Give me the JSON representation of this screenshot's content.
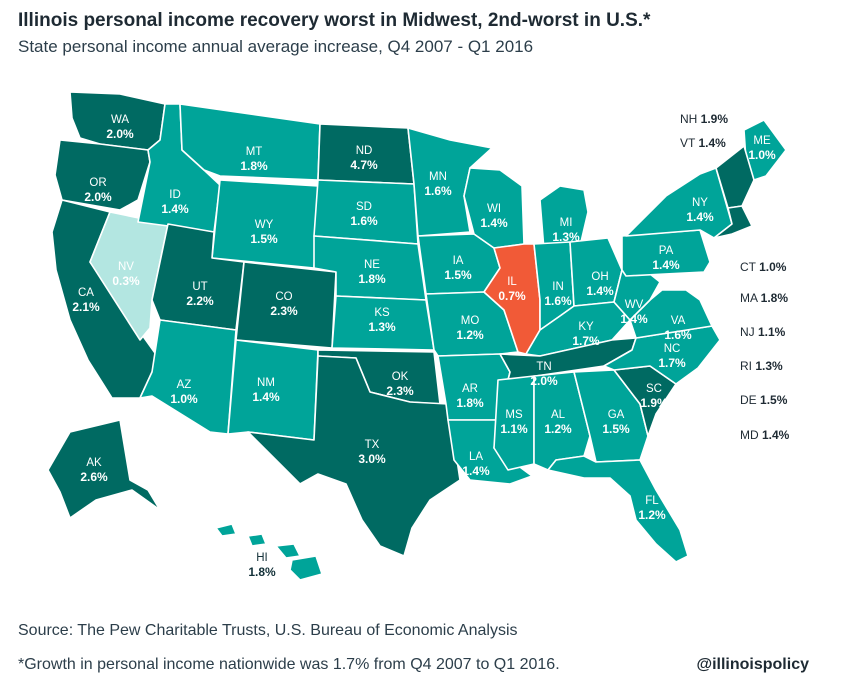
{
  "title": "Illinois personal income recovery worst in Midwest, 2nd-worst in U.S.*",
  "subtitle": "State personal income annual average increase, Q4 2007 - Q1 2016",
  "source": "Source: The Pew Charitable Trusts, U.S. Bureau of Economic Analysis",
  "footnote": "*Growth in personal income nationwide was 1.7% from Q4 2007 to Q1 2016.",
  "handle": "@illinoispolicy",
  "colors": {
    "low": "#b3e6e1",
    "mid": "#00a499",
    "high": "#006a62",
    "illinois": "#f15a37",
    "border": "#ffffff"
  },
  "states": [
    {
      "id": "WA",
      "label": "WA",
      "value": "2.0%"
    },
    {
      "id": "OR",
      "label": "OR",
      "value": "2.0%"
    },
    {
      "id": "CA",
      "label": "CA",
      "value": "2.1%"
    },
    {
      "id": "NV",
      "label": "NV",
      "value": "0.3%"
    },
    {
      "id": "ID",
      "label": "ID",
      "value": "1.4%"
    },
    {
      "id": "MT",
      "label": "MT",
      "value": "1.8%"
    },
    {
      "id": "WY",
      "label": "WY",
      "value": "1.5%"
    },
    {
      "id": "UT",
      "label": "UT",
      "value": "2.2%"
    },
    {
      "id": "CO",
      "label": "CO",
      "value": "2.3%"
    },
    {
      "id": "AZ",
      "label": "AZ",
      "value": "1.0%"
    },
    {
      "id": "NM",
      "label": "NM",
      "value": "1.4%"
    },
    {
      "id": "ND",
      "label": "ND",
      "value": "4.7%"
    },
    {
      "id": "SD",
      "label": "SD",
      "value": "1.6%"
    },
    {
      "id": "NE",
      "label": "NE",
      "value": "1.8%"
    },
    {
      "id": "KS",
      "label": "KS",
      "value": "1.3%"
    },
    {
      "id": "OK",
      "label": "OK",
      "value": "2.3%"
    },
    {
      "id": "TX",
      "label": "TX",
      "value": "3.0%"
    },
    {
      "id": "MN",
      "label": "MN",
      "value": "1.6%"
    },
    {
      "id": "IA",
      "label": "IA",
      "value": "1.5%"
    },
    {
      "id": "MO",
      "label": "MO",
      "value": "1.2%"
    },
    {
      "id": "AR",
      "label": "AR",
      "value": "1.8%"
    },
    {
      "id": "LA",
      "label": "LA",
      "value": "1.4%"
    },
    {
      "id": "WI",
      "label": "WI",
      "value": "1.4%"
    },
    {
      "id": "IL",
      "label": "IL",
      "value": "0.7%"
    },
    {
      "id": "MI",
      "label": "MI",
      "value": "1.3%"
    },
    {
      "id": "IN",
      "label": "IN",
      "value": "1.6%"
    },
    {
      "id": "OH",
      "label": "OH",
      "value": "1.4%"
    },
    {
      "id": "KY",
      "label": "KY",
      "value": "1.7%"
    },
    {
      "id": "TN",
      "label": "TN",
      "value": "2.0%"
    },
    {
      "id": "MS",
      "label": "MS",
      "value": "1.1%"
    },
    {
      "id": "AL",
      "label": "AL",
      "value": "1.2%"
    },
    {
      "id": "GA",
      "label": "GA",
      "value": "1.5%"
    },
    {
      "id": "FL",
      "label": "FL",
      "value": "1.2%"
    },
    {
      "id": "SC",
      "label": "SC",
      "value": "1.9%"
    },
    {
      "id": "NC",
      "label": "NC",
      "value": "1.7%"
    },
    {
      "id": "VA",
      "label": "VA",
      "value": "1.6%"
    },
    {
      "id": "WV",
      "label": "WV",
      "value": "1.4%"
    },
    {
      "id": "PA",
      "label": "PA",
      "value": "1.4%"
    },
    {
      "id": "NY",
      "label": "NY",
      "value": "1.4%"
    },
    {
      "id": "ME",
      "label": "ME",
      "value": "1.0%"
    },
    {
      "id": "AK",
      "label": "AK",
      "value": "2.6%"
    },
    {
      "id": "HI",
      "label": "HI",
      "value": "1.8%"
    }
  ],
  "side_labels": [
    {
      "id": "NH",
      "label": "NH",
      "value": "1.9%"
    },
    {
      "id": "VT",
      "label": "VT",
      "value": "1.4%"
    },
    {
      "id": "CT",
      "label": "CT",
      "value": "1.0%"
    },
    {
      "id": "MA",
      "label": "MA",
      "value": "1.8%"
    },
    {
      "id": "NJ",
      "label": "NJ",
      "value": "1.1%"
    },
    {
      "id": "RI",
      "label": "RI",
      "value": "1.3%"
    },
    {
      "id": "DE",
      "label": "DE",
      "value": "1.5%"
    },
    {
      "id": "MD",
      "label": "MD",
      "value": "1.4%"
    }
  ]
}
